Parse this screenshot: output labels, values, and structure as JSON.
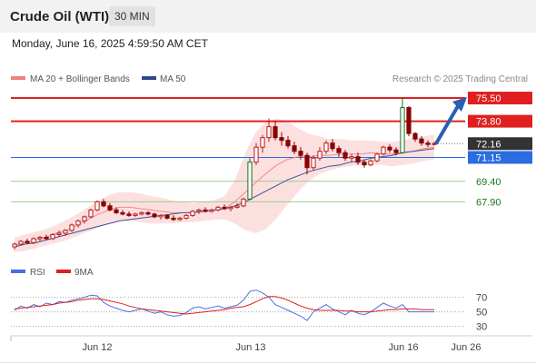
{
  "header": {
    "title": "Crude Oil (WTI)",
    "interval": "30 MIN"
  },
  "timestamp": "Monday, June 16, 2025 4:59:50 AM CET",
  "legend": {
    "items": [
      {
        "label": "MA 20 + Bollinger Bands",
        "color": "#f08080"
      },
      {
        "label": "MA 50",
        "color": "#2c4a8a"
      }
    ],
    "source": "Research © 2025 Trading Central"
  },
  "rsi_legend": [
    {
      "label": "RSI",
      "color": "#4a6fe3"
    },
    {
      "label": "9MA",
      "color": "#e02020"
    }
  ],
  "chart_data": [
    {
      "type": "candlestick",
      "x_ticks": [
        "Jun 12",
        "Jun 13",
        "Jun 16",
        "Jun 26"
      ],
      "price_levels": [
        {
          "value": 75.5,
          "label": "75.50",
          "color": "#e02020",
          "style": "thick"
        },
        {
          "value": 73.8,
          "label": "73.80",
          "color": "#e02020",
          "style": "thick"
        },
        {
          "value": 72.16,
          "label": "72.16",
          "color": "#333333",
          "style": "dotted"
        },
        {
          "value": 71.15,
          "label": "71.15",
          "color": "#2b6de0",
          "style": "thin"
        },
        {
          "value": 69.4,
          "label": "69.40",
          "color": "#1a7a1a",
          "style": "thin"
        },
        {
          "value": 67.9,
          "label": "67.90",
          "color": "#1a7a1a",
          "style": "thin"
        }
      ],
      "candles": [
        [
          64.6,
          64.9,
          64.4,
          64.8
        ],
        [
          64.8,
          65.1,
          64.7,
          65.0
        ],
        [
          65.0,
          65.2,
          64.8,
          64.9
        ],
        [
          64.9,
          65.3,
          64.8,
          65.2
        ],
        [
          65.2,
          65.4,
          65.0,
          65.3
        ],
        [
          65.3,
          65.5,
          65.1,
          65.2
        ],
        [
          65.2,
          65.6,
          65.1,
          65.5
        ],
        [
          65.5,
          65.8,
          65.3,
          65.6
        ],
        [
          65.6,
          65.9,
          65.4,
          65.8
        ],
        [
          65.8,
          66.3,
          65.7,
          66.2
        ],
        [
          66.2,
          66.6,
          66.0,
          66.5
        ],
        [
          66.5,
          66.9,
          66.3,
          66.8
        ],
        [
          66.8,
          67.4,
          66.7,
          67.3
        ],
        [
          67.3,
          68.0,
          67.2,
          67.9
        ],
        [
          67.9,
          68.1,
          67.5,
          67.6
        ],
        [
          67.6,
          67.8,
          67.2,
          67.3
        ],
        [
          67.3,
          67.5,
          67.0,
          67.1
        ],
        [
          67.1,
          67.3,
          66.9,
          67.0
        ],
        [
          67.0,
          67.2,
          66.8,
          66.9
        ],
        [
          66.9,
          67.1,
          66.8,
          67.0
        ],
        [
          67.0,
          67.2,
          66.9,
          67.1
        ],
        [
          67.1,
          67.2,
          66.9,
          67.0
        ],
        [
          67.0,
          67.1,
          66.7,
          66.8
        ],
        [
          66.8,
          67.0,
          66.6,
          66.9
        ],
        [
          66.9,
          67.0,
          66.6,
          66.7
        ],
        [
          66.7,
          66.9,
          66.5,
          66.6
        ],
        [
          66.6,
          66.8,
          66.5,
          66.7
        ],
        [
          66.7,
          67.0,
          66.6,
          66.9
        ],
        [
          66.9,
          67.3,
          66.8,
          67.2
        ],
        [
          67.2,
          67.4,
          67.0,
          67.3
        ],
        [
          67.3,
          67.5,
          67.1,
          67.2
        ],
        [
          67.2,
          67.4,
          67.1,
          67.3
        ],
        [
          67.3,
          67.6,
          67.2,
          67.5
        ],
        [
          67.5,
          67.7,
          67.3,
          67.4
        ],
        [
          67.4,
          67.6,
          67.2,
          67.5
        ],
        [
          67.5,
          67.8,
          67.4,
          67.6
        ],
        [
          67.6,
          68.2,
          67.5,
          68.1
        ],
        [
          68.1,
          71.1,
          68.0,
          70.8
        ],
        [
          70.8,
          72.2,
          70.6,
          71.9
        ],
        [
          71.9,
          72.8,
          71.5,
          72.6
        ],
        [
          72.6,
          74.0,
          72.3,
          73.4
        ],
        [
          73.4,
          73.8,
          72.4,
          72.6
        ],
        [
          72.6,
          73.0,
          72.0,
          72.4
        ],
        [
          72.4,
          72.7,
          71.8,
          72.0
        ],
        [
          72.0,
          72.3,
          71.4,
          71.6
        ],
        [
          71.6,
          71.9,
          71.0,
          71.3
        ],
        [
          71.3,
          71.5,
          69.9,
          70.4
        ],
        [
          70.4,
          71.3,
          70.2,
          71.1
        ],
        [
          71.1,
          71.9,
          70.9,
          71.6
        ],
        [
          71.6,
          72.4,
          71.4,
          72.2
        ],
        [
          72.2,
          72.5,
          71.6,
          71.8
        ],
        [
          71.8,
          72.0,
          71.2,
          71.5
        ],
        [
          71.5,
          71.7,
          70.9,
          71.1
        ],
        [
          71.1,
          71.4,
          70.8,
          71.2
        ],
        [
          71.2,
          71.5,
          70.6,
          70.8
        ],
        [
          70.8,
          71.0,
          70.4,
          70.6
        ],
        [
          70.6,
          71.0,
          70.5,
          70.9
        ],
        [
          70.9,
          71.5,
          70.8,
          71.4
        ],
        [
          71.4,
          72.0,
          71.3,
          71.9
        ],
        [
          71.9,
          72.1,
          71.5,
          71.7
        ],
        [
          71.7,
          71.9,
          71.3,
          71.5
        ],
        [
          71.5,
          75.5,
          71.4,
          74.8
        ],
        [
          74.8,
          74.9,
          72.7,
          72.9
        ],
        [
          72.9,
          73.0,
          72.3,
          72.5
        ],
        [
          72.5,
          72.7,
          72.0,
          72.2
        ],
        [
          72.2,
          72.4,
          71.9,
          72.1
        ],
        [
          72.1,
          72.3,
          72.0,
          72.16
        ]
      ],
      "bollinger": {
        "upper": [
          65.3,
          65.5,
          65.7,
          65.9,
          66.2,
          66.6,
          67.0,
          67.5,
          68.0,
          68.4,
          68.6,
          68.6,
          68.5,
          68.3,
          68.2,
          68.0,
          67.9,
          67.8,
          67.9,
          68.0,
          68.3,
          69.5,
          71.5,
          73.0,
          73.8,
          74.0,
          73.8,
          73.3,
          72.9,
          72.7,
          72.5,
          72.5,
          72.4,
          72.4,
          72.4,
          72.3,
          72.3,
          72.4,
          72.6,
          72.7,
          72.8
        ],
        "lower": [
          64.2,
          64.3,
          64.5,
          64.7,
          64.9,
          65.1,
          65.4,
          65.7,
          66.0,
          66.3,
          66.5,
          66.5,
          66.4,
          66.3,
          66.3,
          66.3,
          66.4,
          66.4,
          66.5,
          66.6,
          66.6,
          66.3,
          65.8,
          65.6,
          65.9,
          66.7,
          67.7,
          68.6,
          69.4,
          69.9,
          70.2,
          70.4,
          70.5,
          70.6,
          70.6,
          70.6,
          70.5,
          70.6,
          70.7,
          70.9,
          71.0
        ],
        "ma20": [
          64.7,
          64.9,
          65.1,
          65.3,
          65.6,
          65.8,
          66.2,
          66.6,
          67.0,
          67.3,
          67.5,
          67.5,
          67.4,
          67.3,
          67.2,
          67.1,
          67.1,
          67.1,
          67.2,
          67.3,
          67.4,
          67.9,
          68.6,
          69.3,
          70.0,
          70.6,
          71.0,
          71.2,
          71.2,
          71.3,
          71.3,
          71.4,
          71.4,
          71.4,
          71.5,
          71.4,
          71.4,
          71.5,
          71.6,
          71.8,
          71.9
        ]
      },
      "ma50": [
        64.6,
        64.8,
        64.9,
        65.1,
        65.3,
        65.5,
        65.7,
        65.9,
        66.1,
        66.3,
        66.5,
        66.6,
        66.7,
        66.8,
        66.9,
        67.0,
        67.1,
        67.1,
        67.2,
        67.3,
        67.4,
        67.6,
        67.9,
        68.3,
        68.7,
        69.1,
        69.5,
        69.8,
        70.1,
        70.3,
        70.5,
        70.6,
        70.8,
        70.9,
        71.1,
        71.2,
        71.3,
        71.5,
        71.6,
        71.7,
        71.8
      ],
      "projection": {
        "from": 72.16,
        "to": 75.5
      },
      "ylim": [
        64.2,
        76.3
      ]
    },
    {
      "type": "line",
      "name": "RSI panel",
      "y_ticks": [
        70,
        50,
        30
      ],
      "ylim": [
        22,
        82
      ],
      "series": [
        {
          "name": "RSI",
          "color": "#4a6fe3",
          "values": [
            52,
            58,
            55,
            60,
            57,
            62,
            60,
            64,
            63,
            66,
            68,
            70,
            73,
            72,
            63,
            58,
            55,
            52,
            50,
            52,
            54,
            51,
            48,
            50,
            46,
            44,
            45,
            49,
            55,
            57,
            54,
            56,
            58,
            55,
            57,
            59,
            66,
            78,
            80,
            76,
            70,
            60,
            56,
            52,
            48,
            44,
            38,
            50,
            55,
            60,
            54,
            50,
            46,
            52,
            48,
            46,
            50,
            56,
            62,
            58,
            55,
            60,
            50,
            50,
            50,
            50,
            50
          ]
        },
        {
          "name": "9MA",
          "color": "#e02020",
          "values": [
            54,
            55,
            56,
            57,
            58,
            59,
            60,
            62,
            63,
            64,
            66,
            67,
            68,
            68,
            67,
            65,
            63,
            61,
            58,
            56,
            54,
            53,
            52,
            51,
            50,
            49,
            48,
            47,
            48,
            49,
            50,
            51,
            52,
            53,
            55,
            56,
            57,
            60,
            64,
            68,
            71,
            71,
            69,
            66,
            62,
            58,
            55,
            53,
            52,
            52,
            52,
            52,
            51,
            51,
            50,
            50,
            50,
            51,
            52,
            53,
            53,
            54,
            54,
            54,
            53,
            53,
            53
          ]
        }
      ]
    }
  ]
}
